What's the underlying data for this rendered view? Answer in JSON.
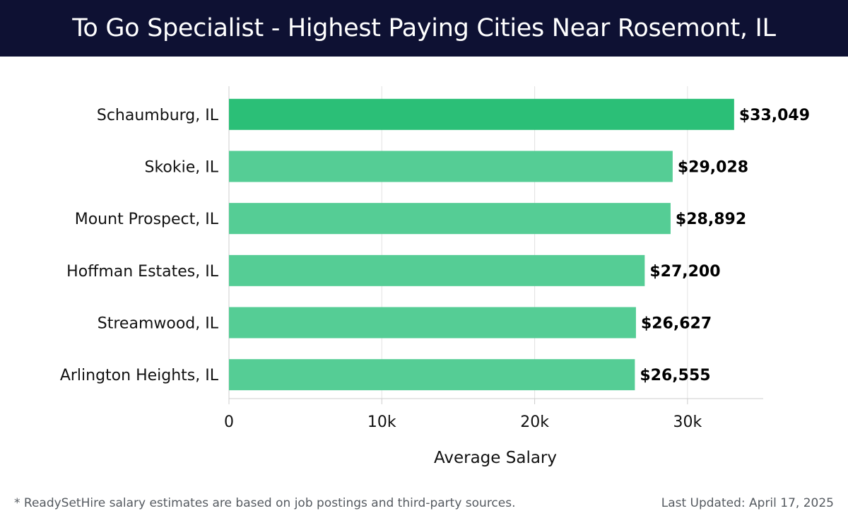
{
  "header": {
    "title": "To Go Specialist - Highest Paying Cities Near Rosemont, IL"
  },
  "chart_data": {
    "type": "bar",
    "orientation": "horizontal",
    "categories": [
      "Schaumburg, IL",
      "Skokie, IL",
      "Mount Prospect, IL",
      "Hoffman Estates, IL",
      "Streamwood, IL",
      "Arlington Heights, IL"
    ],
    "values": [
      33049,
      29028,
      28892,
      27200,
      26627,
      26555
    ],
    "value_labels": [
      "$33,049",
      "$29,028",
      "$28,892",
      "$27,200",
      "$26,627",
      "$26,555"
    ],
    "xlabel": "Average Salary",
    "ylabel": "",
    "xlim": [
      0,
      35000
    ],
    "xticks": [
      0,
      10000,
      20000,
      30000
    ],
    "xtick_labels": [
      "0",
      "10k",
      "20k",
      "30k"
    ],
    "grid": true,
    "colors": {
      "top_bar": "#2bbf77",
      "bar": "#55cd95",
      "gridline": "#e2e2e2",
      "label": "#000000"
    }
  },
  "footer": {
    "note": "* ReadySetHire salary estimates are based on job postings and third-party sources.",
    "updated": "Last Updated: April 17, 2025"
  }
}
